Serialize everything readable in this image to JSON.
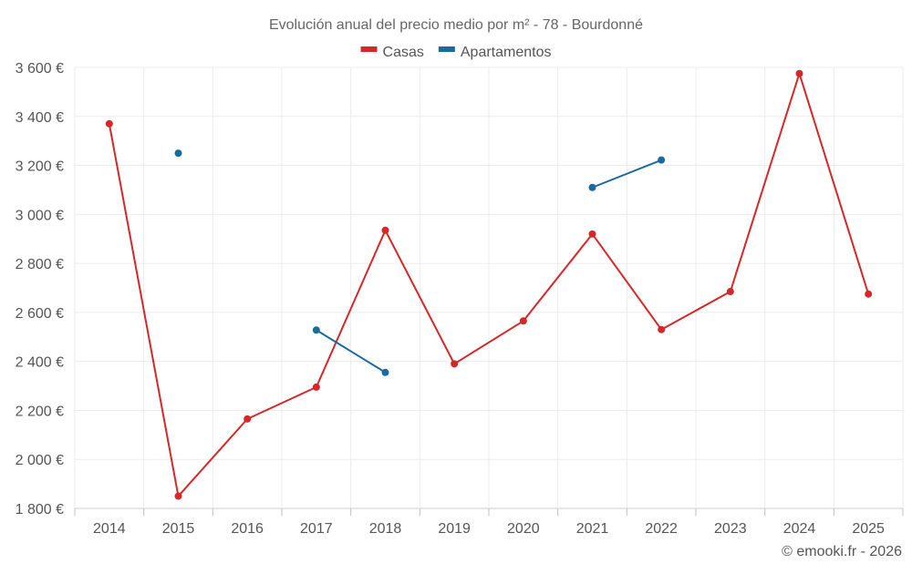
{
  "chart_data": {
    "type": "line",
    "title": "Evolución anual del precio medio por m² - 78 - Bourdonné",
    "categories": [
      "2014",
      "2015",
      "2016",
      "2017",
      "2018",
      "2019",
      "2020",
      "2021",
      "2022",
      "2023",
      "2024",
      "2025"
    ],
    "series": [
      {
        "name": "Casas",
        "color": "#d62728",
        "values": [
          3370,
          1850,
          2165,
          2295,
          2935,
          2390,
          2565,
          2920,
          2530,
          2685,
          3575,
          2675
        ]
      },
      {
        "name": "Apartamentos",
        "color": "#1a6aa0",
        "values": [
          null,
          3250,
          null,
          2528,
          2355,
          null,
          null,
          3110,
          3222,
          null,
          null,
          null
        ]
      }
    ],
    "ylim": [
      1800,
      3600
    ],
    "yticks": [
      1800,
      2000,
      2200,
      2400,
      2600,
      2800,
      3000,
      3200,
      3400,
      3600
    ],
    "ytick_labels": [
      "1 800 €",
      "2 000 €",
      "2 200 €",
      "2 400 €",
      "2 600 €",
      "2 800 €",
      "3 000 €",
      "3 200 €",
      "3 400 €",
      "3 600 €"
    ],
    "xlabel": "",
    "ylabel": "",
    "grid": true,
    "legend_position": "top-center"
  },
  "footer": {
    "credit": "© emooki.fr - 2026"
  }
}
